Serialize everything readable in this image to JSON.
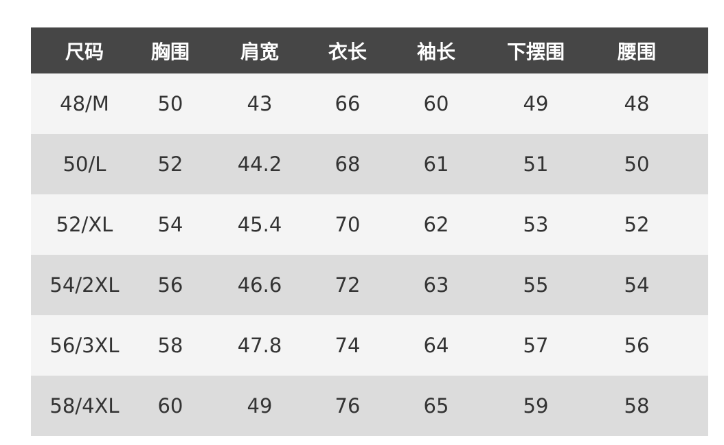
{
  "table": {
    "headers": [
      "尺码",
      "胸围",
      "肩宽",
      "衣长",
      "袖长",
      "下摆围",
      "腰围"
    ],
    "rows": [
      [
        "48/M",
        "50",
        "43",
        "66",
        "60",
        "49",
        "48"
      ],
      [
        "50/L",
        "52",
        "44.2",
        "68",
        "61",
        "51",
        "50"
      ],
      [
        "52/XL",
        "54",
        "45.4",
        "70",
        "62",
        "53",
        "52"
      ],
      [
        "54/2XL",
        "56",
        "46.6",
        "72",
        "63",
        "55",
        "54"
      ],
      [
        "56/3XL",
        "58",
        "47.8",
        "74",
        "64",
        "57",
        "56"
      ],
      [
        "58/4XL",
        "60",
        "49",
        "76",
        "65",
        "59",
        "58"
      ]
    ]
  },
  "colors": {
    "header_bg": "#464646",
    "row_light": "#f4f4f4",
    "row_gray": "#dcdcdc",
    "text": "#333333"
  }
}
